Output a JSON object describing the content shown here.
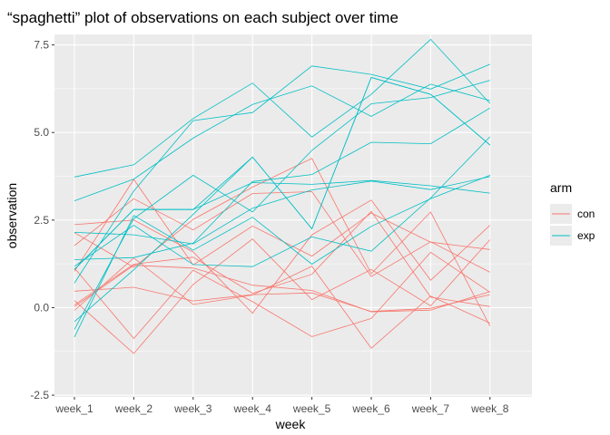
{
  "chart_data": {
    "type": "line",
    "title": "“spaghetti” plot of observations on each subject over time",
    "xlabel": "week",
    "ylabel": "observation",
    "categories": [
      "week_1",
      "week_2",
      "week_3",
      "week_4",
      "week_5",
      "week_6",
      "week_7",
      "week_8"
    ],
    "y_ticks": [
      -2.5,
      0.0,
      2.5,
      5.0,
      7.5
    ],
    "y_tick_labels": [
      "-2.5",
      "0.0",
      "2.5",
      "5.0",
      "7.5"
    ],
    "ylim": [
      -2.55,
      7.8
    ],
    "grid": true,
    "legend": {
      "title": "arm",
      "placement": "right",
      "entries": [
        {
          "label": "con",
          "color": "#F8766D"
        },
        {
          "label": "exp",
          "color": "#00BFC4"
        }
      ]
    },
    "series": [
      {
        "group": "con",
        "values": [
          0.2,
          -1.31,
          0.66,
          1.96,
          0.23,
          1.09,
          0.05,
          1.94
        ]
      },
      {
        "group": "con",
        "values": [
          1.13,
          -0.88,
          1.07,
          0.17,
          -0.83,
          -0.31,
          1.58,
          0.44
        ]
      },
      {
        "group": "con",
        "values": [
          1.77,
          3.11,
          2.22,
          3.26,
          3.31,
          0.89,
          1.88,
          1.01
        ]
      },
      {
        "group": "con",
        "values": [
          1.04,
          3.66,
          1.22,
          2.33,
          1.47,
          2.7,
          1.87,
          1.66
        ]
      },
      {
        "group": "con",
        "values": [
          0.47,
          0.58,
          0.19,
          0.37,
          0.42,
          -0.11,
          -0.02,
          0.37
        ]
      },
      {
        "group": "con",
        "values": [
          2.37,
          2.5,
          1.59,
          -0.16,
          2.08,
          3.07,
          0.78,
          2.35
        ]
      },
      {
        "group": "con",
        "values": [
          0.03,
          1.21,
          1.13,
          0.64,
          0.49,
          -0.12,
          -0.07,
          0.46
        ]
      },
      {
        "group": "con",
        "values": [
          -0.08,
          1.42,
          0.09,
          0.36,
          1.18,
          -1.16,
          0.33,
          -0.44
        ]
      },
      {
        "group": "con",
        "values": [
          0.08,
          1.24,
          1.44,
          0.41,
          0.95,
          2.75,
          0.3,
          0.03
        ]
      },
      {
        "group": "con",
        "values": [
          2.14,
          1.15,
          2.52,
          3.44,
          4.26,
          0.97,
          2.73,
          -0.53
        ]
      },
      {
        "group": "exp",
        "values": [
          3.05,
          3.67,
          4.84,
          5.8,
          6.33,
          5.46,
          6.38,
          5.91
        ]
      },
      {
        "group": "exp",
        "values": [
          -0.84,
          2.63,
          1.64,
          2.58,
          1.24,
          2.32,
          3.11,
          3.78
        ]
      },
      {
        "group": "exp",
        "values": [
          2.15,
          2.08,
          1.82,
          2.84,
          3.36,
          3.61,
          3.37,
          3.74
        ]
      },
      {
        "group": "exp",
        "values": [
          -0.62,
          2.54,
          3.78,
          2.73,
          4.49,
          5.82,
          6.0,
          6.49
        ]
      },
      {
        "group": "exp",
        "values": [
          0.7,
          3.33,
          5.34,
          5.57,
          6.9,
          6.66,
          6.24,
          6.95
        ]
      },
      {
        "group": "exp",
        "values": [
          3.73,
          4.08,
          5.4,
          6.41,
          4.87,
          6.09,
          7.66,
          5.83
        ]
      },
      {
        "group": "exp",
        "values": [
          1.18,
          2.35,
          1.23,
          1.17,
          2.02,
          1.61,
          3.13,
          4.88
        ]
      },
      {
        "group": "exp",
        "values": [
          1.37,
          1.43,
          1.84,
          3.6,
          3.8,
          4.72,
          4.68,
          5.7
        ]
      },
      {
        "group": "exp",
        "values": [
          -0.4,
          1.08,
          2.66,
          4.3,
          2.25,
          6.57,
          6.09,
          4.64
        ]
      },
      {
        "group": "exp",
        "values": [
          1.09,
          2.8,
          2.8,
          4.3,
          2.25,
          6.57,
          6.09,
          4.64
        ]
      },
      {
        "group": "exp",
        "values": [
          1.09,
          2.8,
          2.8,
          3.57,
          3.52,
          3.63,
          3.48,
          3.27
        ]
      }
    ]
  }
}
